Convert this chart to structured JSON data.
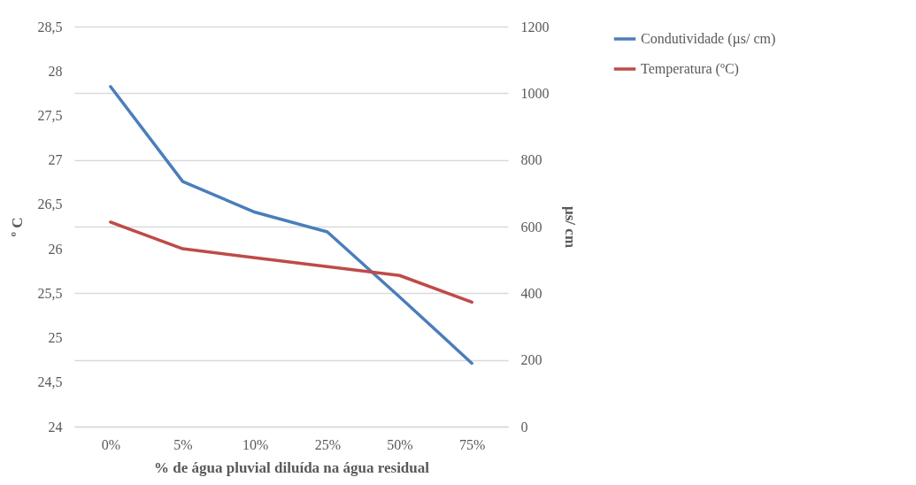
{
  "chart_data": {
    "type": "line",
    "xlabel": "% de água pluvial diluída na água residual",
    "ylabel": "º C",
    "y2label": "µs/ cm",
    "categories": [
      "0%",
      "5%",
      "10%",
      "25%",
      "50%",
      "75%"
    ],
    "series": [
      {
        "name": "Condutividade (µs/ cm)",
        "color": "#4a7ebb",
        "axis": "y2",
        "values": [
          1020,
          735,
          643,
          584,
          389,
          190
        ]
      },
      {
        "name": "Temperatura (ºC)",
        "color": "#be4b48",
        "axis": "y",
        "values": [
          26.3,
          26.0,
          25.9,
          25.8,
          25.7,
          25.4
        ]
      }
    ],
    "ylim": [
      24,
      28.5
    ],
    "yticks": [
      {
        "value": 24,
        "label": "24"
      },
      {
        "value": 24.5,
        "label": "24,5"
      },
      {
        "value": 25,
        "label": "25"
      },
      {
        "value": 25.5,
        "label": "25,5"
      },
      {
        "value": 26,
        "label": "26"
      },
      {
        "value": 26.5,
        "label": "26,5"
      },
      {
        "value": 27,
        "label": "27"
      },
      {
        "value": 27.5,
        "label": "27,5"
      },
      {
        "value": 28,
        "label": "28"
      },
      {
        "value": 28.5,
        "label": "28,5"
      }
    ],
    "y2lim": [
      0,
      1200
    ],
    "y2ticks": [
      0,
      200,
      400,
      600,
      800,
      1000,
      1200
    ],
    "grid": "y",
    "legend": "right",
    "marker": "none",
    "line_style": "solid"
  }
}
